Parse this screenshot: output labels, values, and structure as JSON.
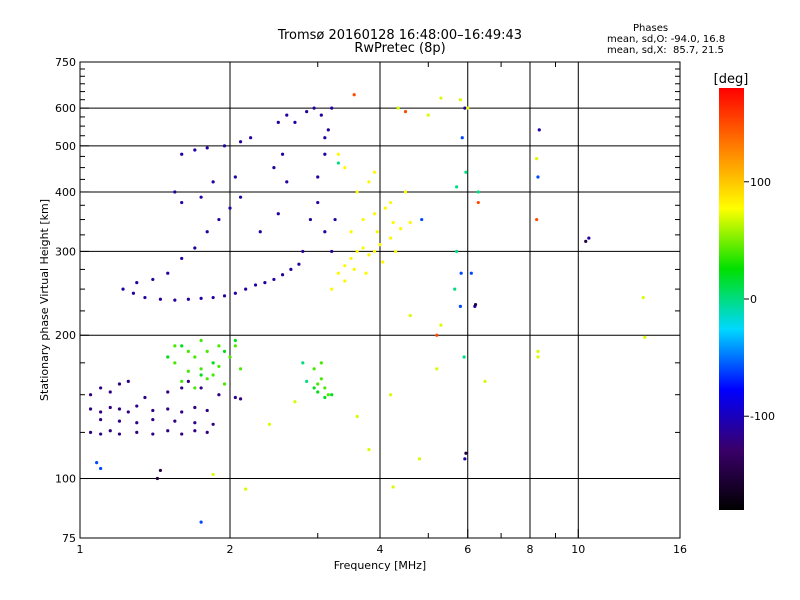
{
  "header": {
    "title_line1": "Tromsø 20160128 16:48:00–16:49:43",
    "title_line2": "RwPretec (8p)"
  },
  "stats": {
    "title": "Phases",
    "line_o": "mean, sd,O: -94.0, 16.8",
    "line_x": "mean, sd,X:  85.7, 21.5"
  },
  "chart_data": {
    "type": "scatter",
    "xlabel": "Frequency [MHz]",
    "ylabel": "Stationary phase Virtual Height [km]",
    "xscale": "log",
    "yscale": "log",
    "xlim": [
      1,
      16
    ],
    "ylim": [
      75,
      750
    ],
    "xticks": [
      1,
      2,
      4,
      6,
      8,
      10,
      16
    ],
    "xtick_labels": [
      "1",
      "2",
      "4",
      "6",
      "8",
      "10",
      "16"
    ],
    "x_gridlines": [
      2,
      4,
      6,
      8,
      10
    ],
    "x_minor_ticks": [
      3,
      5,
      7,
      9
    ],
    "yticks": [
      75,
      100,
      200,
      300,
      400,
      500,
      600,
      750
    ],
    "ytick_labels": [
      "75",
      "100",
      "200",
      "300",
      "400",
      "500",
      "600",
      "750"
    ],
    "y_gridlines": [
      100,
      200,
      300,
      400,
      500,
      600
    ],
    "y_minor_ticks": [
      125,
      150,
      175,
      225,
      250,
      275,
      325,
      350,
      375,
      425,
      450,
      475,
      525,
      550,
      575,
      625,
      650,
      675,
      700,
      725
    ],
    "grid": true,
    "colorbar": {
      "title": "[deg]",
      "min": -180,
      "max": 180,
      "ticks": [
        100,
        0,
        -100
      ],
      "tick_labels": [
        "100",
        "0",
        "-100"
      ],
      "gradient": [
        "#000000",
        "#3a006a",
        "#0000ff",
        "#00d8ff",
        "#00e000",
        "#ffff00",
        "#ff8000",
        "#ff0000"
      ]
    },
    "series": [
      {
        "color_phase": -110,
        "points": [
          [
            1.22,
            250
          ],
          [
            1.28,
            245
          ],
          [
            1.35,
            240
          ],
          [
            1.45,
            238
          ],
          [
            1.55,
            237
          ],
          [
            1.65,
            238
          ],
          [
            1.75,
            239
          ],
          [
            1.85,
            240
          ],
          [
            1.95,
            242
          ],
          [
            2.05,
            245
          ],
          [
            2.15,
            250
          ],
          [
            2.25,
            255
          ],
          [
            2.35,
            258
          ],
          [
            2.45,
            262
          ],
          [
            2.55,
            268
          ],
          [
            2.65,
            275
          ],
          [
            2.75,
            282
          ],
          [
            1.3,
            258
          ],
          [
            1.4,
            262
          ],
          [
            1.5,
            270
          ],
          [
            1.6,
            290
          ],
          [
            1.7,
            305
          ],
          [
            1.8,
            330
          ],
          [
            1.9,
            350
          ],
          [
            2.0,
            370
          ],
          [
            2.1,
            390
          ],
          [
            2.3,
            330
          ],
          [
            2.5,
            360
          ],
          [
            2.6,
            420
          ],
          [
            2.8,
            300
          ],
          [
            2.9,
            350
          ],
          [
            3.0,
            430
          ],
          [
            3.1,
            480
          ],
          [
            3.15,
            540
          ],
          [
            3.2,
            600
          ],
          [
            1.6,
            480
          ],
          [
            1.7,
            490
          ],
          [
            1.8,
            495
          ],
          [
            1.95,
            500
          ],
          [
            2.1,
            510
          ],
          [
            2.2,
            520
          ],
          [
            2.5,
            560
          ],
          [
            2.6,
            580
          ],
          [
            2.7,
            560
          ],
          [
            2.85,
            590
          ],
          [
            2.95,
            600
          ],
          [
            3.05,
            580
          ],
          [
            3.1,
            520
          ],
          [
            1.55,
            400
          ],
          [
            1.6,
            380
          ],
          [
            1.75,
            390
          ],
          [
            1.85,
            420
          ],
          [
            2.05,
            430
          ],
          [
            2.45,
            450
          ],
          [
            2.55,
            480
          ],
          [
            3.0,
            380
          ],
          [
            3.1,
            330
          ],
          [
            3.2,
            300
          ],
          [
            3.25,
            350
          ],
          [
            5.92,
            110
          ],
          [
            10.5,
            320
          ],
          [
            8.35,
            540
          ],
          [
            5.92,
            600
          ],
          [
            6.2,
            230
          ]
        ]
      },
      {
        "color_phase": -120,
        "points": [
          [
            1.05,
            140
          ],
          [
            1.1,
            138
          ],
          [
            1.15,
            141
          ],
          [
            1.2,
            140
          ],
          [
            1.25,
            138
          ],
          [
            1.3,
            142
          ],
          [
            1.4,
            139
          ],
          [
            1.5,
            140
          ],
          [
            1.6,
            138
          ],
          [
            1.7,
            141
          ],
          [
            1.8,
            139
          ],
          [
            1.05,
            125
          ],
          [
            1.1,
            124
          ],
          [
            1.15,
            126
          ],
          [
            1.2,
            124
          ],
          [
            1.3,
            125
          ],
          [
            1.4,
            124
          ],
          [
            1.5,
            126
          ],
          [
            1.6,
            124
          ],
          [
            1.7,
            126
          ],
          [
            1.8,
            125
          ],
          [
            1.05,
            150
          ],
          [
            1.1,
            155
          ],
          [
            1.15,
            152
          ],
          [
            1.2,
            158
          ],
          [
            1.25,
            160
          ],
          [
            1.35,
            148
          ],
          [
            1.5,
            152
          ],
          [
            1.6,
            155
          ],
          [
            1.65,
            160
          ],
          [
            1.75,
            155
          ],
          [
            1.9,
            150
          ],
          [
            2.05,
            148
          ],
          [
            2.1,
            147
          ],
          [
            1.1,
            133
          ],
          [
            1.2,
            132
          ],
          [
            1.3,
            131
          ],
          [
            1.4,
            133
          ],
          [
            1.55,
            132
          ],
          [
            1.7,
            131
          ],
          [
            1.85,
            130
          ]
        ]
      },
      {
        "color_phase": 80,
        "points": [
          [
            3.3,
            270
          ],
          [
            3.4,
            280
          ],
          [
            3.5,
            290
          ],
          [
            3.6,
            300
          ],
          [
            3.7,
            305
          ],
          [
            3.8,
            295
          ],
          [
            3.9,
            300
          ],
          [
            4.0,
            310
          ],
          [
            4.2,
            320
          ],
          [
            4.4,
            335
          ],
          [
            4.6,
            345
          ],
          [
            3.5,
            330
          ],
          [
            3.7,
            350
          ],
          [
            3.9,
            360
          ],
          [
            4.1,
            370
          ],
          [
            3.6,
            400
          ],
          [
            3.8,
            420
          ],
          [
            3.9,
            440
          ],
          [
            4.2,
            380
          ],
          [
            4.5,
            400
          ],
          [
            3.4,
            450
          ],
          [
            3.3,
            480
          ],
          [
            3.2,
            250
          ],
          [
            3.4,
            260
          ],
          [
            3.55,
            275
          ],
          [
            3.75,
            270
          ],
          [
            4.05,
            285
          ],
          [
            4.3,
            300
          ],
          [
            3.95,
            330
          ],
          [
            4.25,
            345
          ]
        ]
      },
      {
        "color_phase": 40,
        "points": [
          [
            1.55,
            175
          ],
          [
            1.65,
            168
          ],
          [
            1.7,
            180
          ],
          [
            1.75,
            170
          ],
          [
            1.8,
            185
          ],
          [
            1.85,
            165
          ],
          [
            1.9,
            172
          ],
          [
            2.0,
            180
          ],
          [
            1.6,
            160
          ],
          [
            1.95,
            158
          ],
          [
            2.1,
            170
          ],
          [
            1.7,
            155
          ],
          [
            1.8,
            162
          ],
          [
            2.05,
            190
          ],
          [
            1.9,
            190
          ],
          [
            1.75,
            195
          ],
          [
            1.55,
            190
          ],
          [
            1.65,
            185
          ],
          [
            3.0,
            158
          ],
          [
            3.05,
            162
          ],
          [
            3.1,
            155
          ],
          [
            3.15,
            150
          ],
          [
            2.95,
            170
          ],
          [
            3.05,
            175
          ]
        ]
      },
      {
        "color_phase": 20,
        "points": [
          [
            1.5,
            180
          ],
          [
            1.6,
            190
          ],
          [
            1.75,
            165
          ],
          [
            1.85,
            175
          ],
          [
            1.95,
            185
          ],
          [
            2.05,
            195
          ],
          [
            3.0,
            152
          ],
          [
            3.2,
            150
          ],
          [
            3.1,
            148
          ],
          [
            2.95,
            155
          ]
        ]
      },
      {
        "color_phase": 150,
        "points": [
          [
            3.55,
            640
          ],
          [
            4.5,
            590
          ],
          [
            6.3,
            380
          ],
          [
            5.2,
            200
          ],
          [
            8.25,
            350
          ]
        ]
      },
      {
        "color_phase": 70,
        "points": [
          [
            5.3,
            630
          ],
          [
            5.8,
            625
          ],
          [
            6.0,
            600
          ],
          [
            5.0,
            580
          ],
          [
            4.35,
            600
          ],
          [
            8.25,
            470
          ],
          [
            8.3,
            180
          ],
          [
            8.3,
            185
          ],
          [
            13.5,
            240
          ],
          [
            13.6,
            198
          ],
          [
            4.25,
            96
          ],
          [
            1.85,
            102
          ],
          [
            5.2,
            170
          ],
          [
            6.5,
            160
          ],
          [
            4.8,
            110
          ],
          [
            4.6,
            220
          ],
          [
            5.3,
            210
          ],
          [
            2.15,
            95
          ],
          [
            2.4,
            130
          ],
          [
            3.8,
            115
          ],
          [
            4.2,
            150
          ],
          [
            2.7,
            145
          ],
          [
            3.6,
            135
          ]
        ]
      },
      {
        "color_phase": 0,
        "points": [
          [
            5.95,
            440
          ],
          [
            5.7,
            410
          ],
          [
            6.3,
            400
          ],
          [
            5.65,
            250
          ],
          [
            5.7,
            300
          ],
          [
            5.9,
            180
          ],
          [
            2.8,
            175
          ],
          [
            2.85,
            160
          ],
          [
            3.3,
            460
          ]
        ]
      },
      {
        "color_phase": -60,
        "points": [
          [
            5.82,
            270
          ],
          [
            6.1,
            270
          ],
          [
            5.8,
            230
          ],
          [
            8.3,
            430
          ],
          [
            1.75,
            81
          ],
          [
            1.1,
            105
          ],
          [
            1.08,
            108
          ],
          [
            4.85,
            350
          ],
          [
            5.85,
            520
          ]
        ]
      },
      {
        "color_phase": -150,
        "points": [
          [
            1.43,
            100
          ],
          [
            1.45,
            104
          ],
          [
            6.22,
            232
          ],
          [
            10.35,
            315
          ],
          [
            5.95,
            113
          ]
        ]
      }
    ]
  }
}
